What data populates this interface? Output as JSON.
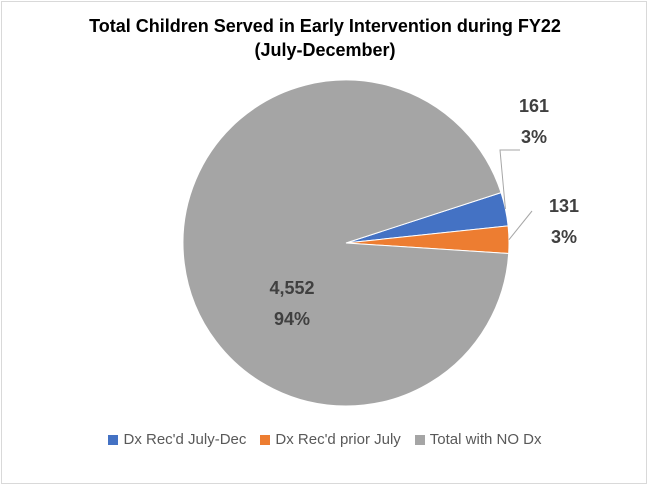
{
  "chart_data": {
    "type": "pie",
    "title": "Total Children Served in Early Intervention during FY22 (July-December)",
    "title_lines": [
      "Total Children Served in Early Intervention during FY22",
      "(July-December)"
    ],
    "slices": [
      {
        "name": "Dx Rec'd July-Dec",
        "value": 161,
        "value_label": "161",
        "percent_label": "3%",
        "color": "#4472C4"
      },
      {
        "name": "Dx Rec'd prior July",
        "value": 131,
        "value_label": "131",
        "percent_label": "3%",
        "color": "#ED7D31"
      },
      {
        "name": "Total with NO Dx",
        "value": 4552,
        "value_label": "4,552",
        "percent_label": "94%",
        "color": "#A5A5A5"
      }
    ],
    "legend_position": "bottom"
  }
}
